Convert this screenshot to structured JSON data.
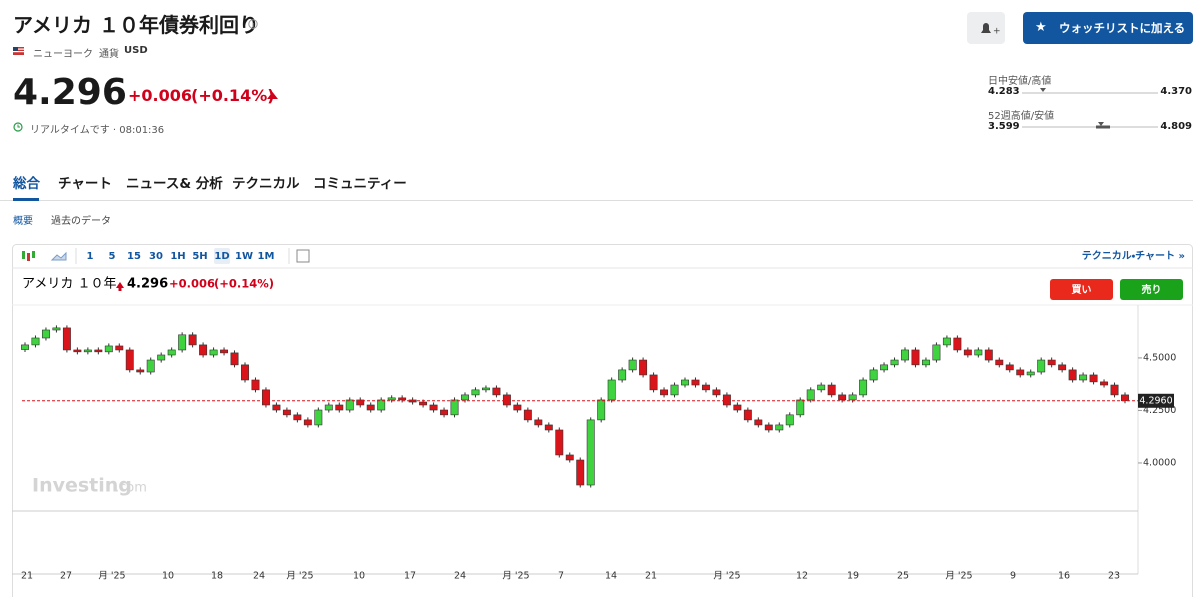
{
  "header": {
    "title": "アメリカ １０年債券利回り",
    "exchange": "ニューヨーク",
    "currency_label": "通貨",
    "currency": "USD",
    "watchlist_button": "ウォッチリストに加える"
  },
  "quote": {
    "price": "4.296",
    "change": "+0.006",
    "change_pct": "(+0.14%)",
    "time": "リアルタイムです · 08:01:36"
  },
  "ranges": {
    "day_label": "日中安値/高値",
    "day_low": "4.283",
    "day_high": "4.370",
    "week52_label": "52週高値/安値",
    "week52_low": "3.599",
    "week52_high": "4.809"
  },
  "tabs": [
    "総合",
    "チャート",
    "ニュース& 分析",
    "テクニカル",
    "コミュニティー"
  ],
  "subtabs": [
    "概要",
    "過去のデータ"
  ],
  "toolbar": {
    "intervals": [
      "1",
      "5",
      "15",
      "30",
      "1H",
      "5H",
      "1D",
      "1W",
      "1M"
    ],
    "technical_link": "テクニカル・チャート »"
  },
  "chart_legend": {
    "name": "アメリカ １０年",
    "price": "4.296",
    "change": "+0.006",
    "change_pct": "(+0.14%)",
    "buy": "買い",
    "sell": "売り",
    "watermark": "Investing",
    "watermark_suffix": ".com"
  },
  "chart_data": {
    "type": "candlestick",
    "up_color": "#3fd43f",
    "down_color": "#d9141a",
    "ylim": [
      3.776,
      4.752
    ],
    "yticks": [
      {
        "value": 4.5,
        "label": "4.5000"
      },
      {
        "value": 4.25,
        "label": "4.2500"
      },
      {
        "value": 4.0,
        "label": "4.0000"
      }
    ],
    "last_price": {
      "value": 4.296,
      "label": "4.2960"
    },
    "x_labels": [
      "21",
      "27",
      "月 '25",
      "10",
      "18",
      "24",
      "月 '25",
      "10",
      "17",
      "24",
      "月 '25",
      "7",
      "14",
      "21",
      "月 '25",
      "12",
      "19",
      "25",
      "月 '25",
      "9",
      "16",
      "23"
    ],
    "candles": [
      [
        4.54,
        4.574,
        4.528,
        4.562
      ],
      [
        4.562,
        4.607,
        4.55,
        4.595
      ],
      [
        4.595,
        4.645,
        4.583,
        4.633
      ],
      [
        4.633,
        4.655,
        4.621,
        4.643
      ],
      [
        4.643,
        4.655,
        4.526,
        4.538
      ],
      [
        4.538,
        4.55,
        4.517,
        4.529
      ],
      [
        4.529,
        4.55,
        4.517,
        4.538
      ],
      [
        4.538,
        4.55,
        4.517,
        4.529
      ],
      [
        4.529,
        4.569,
        4.517,
        4.557
      ],
      [
        4.557,
        4.569,
        4.526,
        4.538
      ],
      [
        4.538,
        4.55,
        4.431,
        4.443
      ],
      [
        4.443,
        4.455,
        4.421,
        4.433
      ],
      [
        4.433,
        4.502,
        4.421,
        4.49
      ],
      [
        4.49,
        4.526,
        4.478,
        4.514
      ],
      [
        4.514,
        4.55,
        4.502,
        4.538
      ],
      [
        4.538,
        4.622,
        4.526,
        4.61
      ],
      [
        4.61,
        4.622,
        4.55,
        4.562
      ],
      [
        4.562,
        4.574,
        4.502,
        4.514
      ],
      [
        4.514,
        4.55,
        4.502,
        4.538
      ],
      [
        4.538,
        4.55,
        4.512,
        4.524
      ],
      [
        4.524,
        4.536,
        4.455,
        4.467
      ],
      [
        4.467,
        4.479,
        4.383,
        4.395
      ],
      [
        4.395,
        4.407,
        4.336,
        4.348
      ],
      [
        4.348,
        4.36,
        4.264,
        4.276
      ],
      [
        4.276,
        4.288,
        4.24,
        4.252
      ],
      [
        4.252,
        4.264,
        4.217,
        4.229
      ],
      [
        4.229,
        4.241,
        4.193,
        4.205
      ],
      [
        4.205,
        4.217,
        4.169,
        4.181
      ],
      [
        4.181,
        4.264,
        4.169,
        4.252
      ],
      [
        4.252,
        4.288,
        4.24,
        4.276
      ],
      [
        4.276,
        4.288,
        4.24,
        4.252
      ],
      [
        4.252,
        4.312,
        4.24,
        4.3
      ],
      [
        4.3,
        4.312,
        4.264,
        4.276
      ],
      [
        4.276,
        4.288,
        4.24,
        4.252
      ],
      [
        4.252,
        4.312,
        4.24,
        4.3
      ],
      [
        4.3,
        4.322,
        4.288,
        4.31
      ],
      [
        4.31,
        4.322,
        4.288,
        4.3
      ],
      [
        4.3,
        4.312,
        4.278,
        4.29
      ],
      [
        4.29,
        4.302,
        4.264,
        4.276
      ],
      [
        4.276,
        4.288,
        4.24,
        4.252
      ],
      [
        4.252,
        4.264,
        4.217,
        4.229
      ],
      [
        4.229,
        4.312,
        4.217,
        4.3
      ],
      [
        4.3,
        4.336,
        4.288,
        4.324
      ],
      [
        4.324,
        4.36,
        4.312,
        4.348
      ],
      [
        4.348,
        4.369,
        4.336,
        4.357
      ],
      [
        4.357,
        4.369,
        4.312,
        4.324
      ],
      [
        4.324,
        4.336,
        4.264,
        4.276
      ],
      [
        4.276,
        4.288,
        4.24,
        4.252
      ],
      [
        4.252,
        4.264,
        4.193,
        4.205
      ],
      [
        4.205,
        4.217,
        4.169,
        4.181
      ],
      [
        4.181,
        4.193,
        4.145,
        4.157
      ],
      [
        4.157,
        4.169,
        4.026,
        4.038
      ],
      [
        4.038,
        4.05,
        4.002,
        4.014
      ],
      [
        4.014,
        4.026,
        3.883,
        3.895
      ],
      [
        3.895,
        4.217,
        3.883,
        4.205
      ],
      [
        4.205,
        4.312,
        4.193,
        4.3
      ],
      [
        4.3,
        4.407,
        4.288,
        4.395
      ],
      [
        4.395,
        4.455,
        4.383,
        4.443
      ],
      [
        4.443,
        4.502,
        4.431,
        4.49
      ],
      [
        4.49,
        4.502,
        4.407,
        4.419
      ],
      [
        4.419,
        4.431,
        4.336,
        4.348
      ],
      [
        4.348,
        4.36,
        4.312,
        4.324
      ],
      [
        4.324,
        4.383,
        4.312,
        4.371
      ],
      [
        4.371,
        4.407,
        4.359,
        4.395
      ],
      [
        4.395,
        4.407,
        4.359,
        4.371
      ],
      [
        4.371,
        4.383,
        4.336,
        4.348
      ],
      [
        4.348,
        4.36,
        4.312,
        4.324
      ],
      [
        4.324,
        4.336,
        4.264,
        4.276
      ],
      [
        4.276,
        4.288,
        4.24,
        4.252
      ],
      [
        4.252,
        4.264,
        4.193,
        4.205
      ],
      [
        4.205,
        4.217,
        4.169,
        4.181
      ],
      [
        4.181,
        4.193,
        4.145,
        4.157
      ],
      [
        4.157,
        4.193,
        4.145,
        4.181
      ],
      [
        4.181,
        4.241,
        4.169,
        4.229
      ],
      [
        4.229,
        4.312,
        4.217,
        4.3
      ],
      [
        4.3,
        4.36,
        4.288,
        4.348
      ],
      [
        4.348,
        4.383,
        4.336,
        4.371
      ],
      [
        4.371,
        4.383,
        4.312,
        4.324
      ],
      [
        4.324,
        4.336,
        4.288,
        4.3
      ],
      [
        4.3,
        4.336,
        4.288,
        4.324
      ],
      [
        4.324,
        4.407,
        4.312,
        4.395
      ],
      [
        4.395,
        4.455,
        4.383,
        4.443
      ],
      [
        4.443,
        4.479,
        4.431,
        4.467
      ],
      [
        4.467,
        4.502,
        4.455,
        4.49
      ],
      [
        4.49,
        4.55,
        4.478,
        4.538
      ],
      [
        4.538,
        4.55,
        4.455,
        4.467
      ],
      [
        4.467,
        4.502,
        4.455,
        4.49
      ],
      [
        4.49,
        4.574,
        4.478,
        4.562
      ],
      [
        4.562,
        4.607,
        4.55,
        4.595
      ],
      [
        4.595,
        4.607,
        4.526,
        4.538
      ],
      [
        4.538,
        4.55,
        4.502,
        4.514
      ],
      [
        4.514,
        4.55,
        4.502,
        4.538
      ],
      [
        4.538,
        4.55,
        4.478,
        4.49
      ],
      [
        4.49,
        4.502,
        4.455,
        4.467
      ],
      [
        4.467,
        4.479,
        4.431,
        4.443
      ],
      [
        4.443,
        4.455,
        4.407,
        4.419
      ],
      [
        4.419,
        4.445,
        4.407,
        4.433
      ],
      [
        4.433,
        4.502,
        4.421,
        4.49
      ],
      [
        4.49,
        4.502,
        4.455,
        4.467
      ],
      [
        4.467,
        4.479,
        4.431,
        4.443
      ],
      [
        4.443,
        4.455,
        4.383,
        4.395
      ],
      [
        4.395,
        4.431,
        4.383,
        4.419
      ],
      [
        4.419,
        4.431,
        4.374,
        4.386
      ],
      [
        4.386,
        4.398,
        4.359,
        4.371
      ],
      [
        4.371,
        4.383,
        4.312,
        4.324
      ],
      [
        4.324,
        4.336,
        4.284,
        4.296
      ]
    ]
  }
}
